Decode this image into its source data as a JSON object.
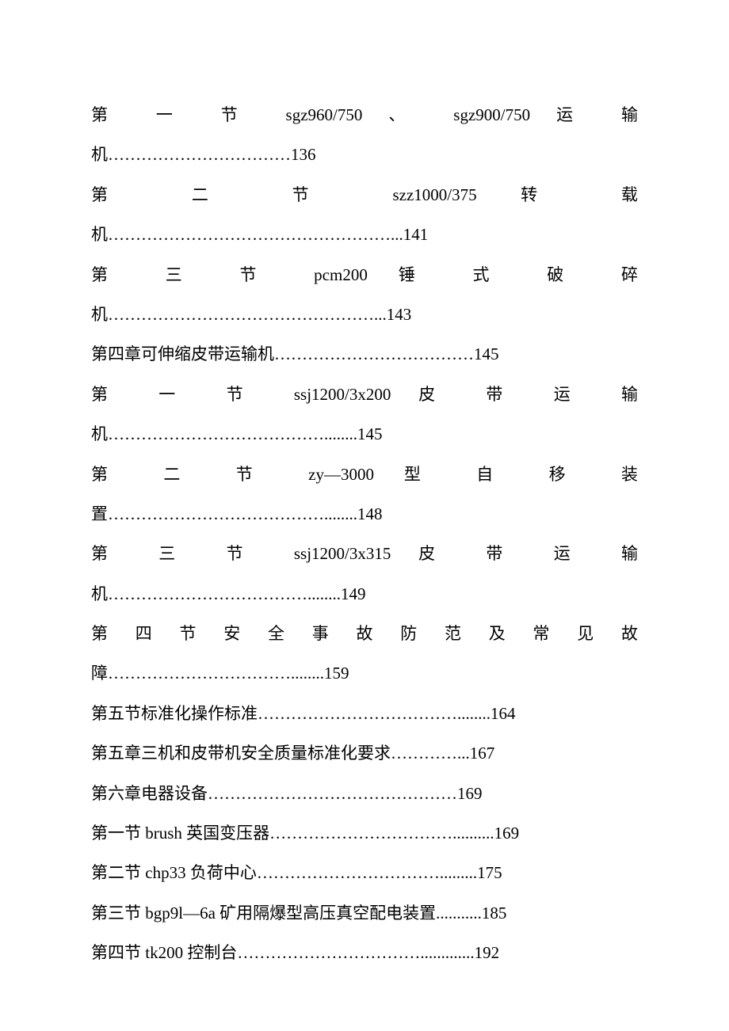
{
  "lines": [
    {
      "text": "第 一 节 sgz960/750 、 sgz900/750 运 输",
      "justify": true
    },
    {
      "text": "机……………………………136",
      "justify": false
    },
    {
      "text": "第 二 节 szz1000/375 转 载",
      "justify": true
    },
    {
      "text": "机……………………………………………...141",
      "justify": false
    },
    {
      "text": "第 三 节 pcm200 锤 式 破 碎",
      "justify": true
    },
    {
      "text": "机…………………………………………...143",
      "justify": false
    },
    {
      "text": "第四章可伸缩皮带运输机………………………………145",
      "justify": false
    },
    {
      "text": "第 一 节 ssj1200/3x200 皮 带 运 输",
      "justify": true
    },
    {
      "text": "机…………………………………........145",
      "justify": false
    },
    {
      "text": "第 二 节 zy—3000 型 自 移 装",
      "justify": true
    },
    {
      "text": "置…………………………………........148",
      "justify": false
    },
    {
      "text": "第 三 节 ssj1200/3x315 皮 带 运 输",
      "justify": true
    },
    {
      "text": "机………………………………........149",
      "justify": false
    },
    {
      "text": "第 四 节 安 全 事 故 防 范 及 常 见 故",
      "justify": true
    },
    {
      "text": "障……………………………........159",
      "justify": false
    },
    {
      "text": "第五节标准化操作标准………………………………........164",
      "justify": false
    },
    {
      "text": "第五章三机和皮带机安全质量标准化要求…………...167",
      "justify": false
    },
    {
      "text": "第六章电器设备………………………………………169",
      "justify": false
    },
    {
      "text": "第一节 brush 英国变压器……………………………..........169",
      "justify": false
    },
    {
      "text": "第二节 chp33 负荷中心…………………………….........175",
      "justify": false
    },
    {
      "text": "第三节 bgp9l—6a 矿用隔爆型高压真空配电装置...........185",
      "justify": false
    },
    {
      "text": "第四节 tk200 控制台…………………………….............192",
      "justify": false
    }
  ],
  "styles": {
    "font_size": 21,
    "text_color": "#000000",
    "background_color": "#ffffff",
    "line_height": 2.4
  }
}
